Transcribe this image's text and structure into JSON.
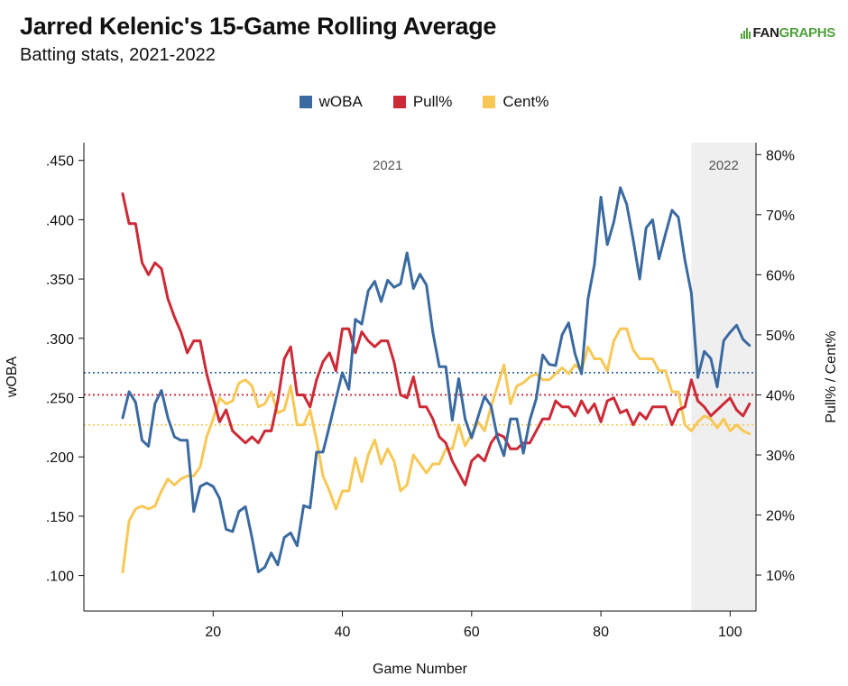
{
  "header": {
    "title": "Jarred Kelenic's 15-Game Rolling Average",
    "subtitle": "Batting stats, 2021-2022",
    "logo_fan": "FAN",
    "logo_graphs": "GRAPHS"
  },
  "colors": {
    "woba": "#3a6aa0",
    "pull": "#cc2a36",
    "cent": "#f7c856",
    "shade": "#efefef",
    "axis": "#111111"
  },
  "chart_data": {
    "type": "line",
    "title": "Jarred Kelenic's 15-Game Rolling Average",
    "subtitle": "Batting stats, 2021-2022",
    "xlabel": "Game Number",
    "ylabel_left": "wOBA",
    "ylabel_right": "Pull% / Cent%",
    "xlim": [
      0,
      104
    ],
    "ylim_left": [
      0.07,
      0.465
    ],
    "ylim_right": [
      4,
      82
    ],
    "x_ticks": [
      20,
      40,
      60,
      80,
      100
    ],
    "x_tick_labels": [
      "20",
      "40",
      "60",
      "80",
      "100"
    ],
    "y_left_ticks": [
      0.1,
      0.15,
      0.2,
      0.25,
      0.3,
      0.35,
      0.4,
      0.45
    ],
    "y_left_tick_labels": [
      ".100",
      ".150",
      ".200",
      ".250",
      ".300",
      ".350",
      ".400",
      ".450"
    ],
    "y_right_ticks": [
      10,
      20,
      30,
      40,
      50,
      60,
      70,
      80
    ],
    "y_right_tick_labels": [
      "10%",
      "20%",
      "30%",
      "40%",
      "50%",
      "60%",
      "70%",
      "80%"
    ],
    "season_labels": [
      {
        "label": "2021",
        "x": 47
      },
      {
        "label": "2022",
        "x": 99
      }
    ],
    "shaded_region": {
      "x_start": 94,
      "x_end": 104,
      "label": "2022"
    },
    "legend": [
      "wOBA",
      "Pull%",
      "Cent%"
    ],
    "legend_position": "top-center",
    "reference_lines": [
      {
        "series": "wOBA",
        "value": 0.271,
        "axis": "left"
      },
      {
        "series": "Pull%",
        "value": 40.0,
        "axis": "right"
      },
      {
        "series": "Cent%",
        "value": 35.0,
        "axis": "right"
      }
    ],
    "x": [
      6,
      7,
      8,
      9,
      10,
      11,
      12,
      13,
      14,
      15,
      16,
      17,
      18,
      19,
      20,
      21,
      22,
      23,
      24,
      25,
      26,
      27,
      28,
      29,
      30,
      31,
      32,
      33,
      34,
      35,
      36,
      37,
      38,
      39,
      40,
      41,
      42,
      43,
      44,
      45,
      46,
      47,
      48,
      49,
      50,
      51,
      52,
      53,
      54,
      55,
      56,
      57,
      58,
      59,
      60,
      61,
      62,
      63,
      64,
      65,
      66,
      67,
      68,
      69,
      70,
      71,
      72,
      73,
      74,
      75,
      76,
      77,
      78,
      79,
      80,
      81,
      82,
      83,
      84,
      85,
      86,
      87,
      88,
      89,
      90,
      91,
      92,
      93,
      94,
      95,
      96,
      97,
      98,
      99,
      100,
      101,
      102,
      103
    ],
    "series": [
      {
        "name": "wOBA",
        "axis": "left",
        "values": [
          0.233,
          0.255,
          0.246,
          0.214,
          0.209,
          0.245,
          0.256,
          0.233,
          0.217,
          0.214,
          0.214,
          0.154,
          0.175,
          0.178,
          0.175,
          0.165,
          0.139,
          0.137,
          0.154,
          0.158,
          0.132,
          0.103,
          0.107,
          0.119,
          0.109,
          0.132,
          0.136,
          0.125,
          0.159,
          0.157,
          0.204,
          0.204,
          0.226,
          0.249,
          0.271,
          0.257,
          0.316,
          0.312,
          0.34,
          0.348,
          0.331,
          0.349,
          0.343,
          0.346,
          0.372,
          0.342,
          0.354,
          0.345,
          0.305,
          0.276,
          0.276,
          0.231,
          0.266,
          0.232,
          0.216,
          0.234,
          0.251,
          0.243,
          0.216,
          0.201,
          0.232,
          0.232,
          0.203,
          0.231,
          0.249,
          0.286,
          0.278,
          0.277,
          0.303,
          0.313,
          0.287,
          0.27,
          0.333,
          0.362,
          0.419,
          0.379,
          0.398,
          0.427,
          0.413,
          0.383,
          0.35,
          0.393,
          0.4,
          0.367,
          0.388,
          0.408,
          0.402,
          0.366,
          0.338,
          0.267,
          0.289,
          0.283,
          0.259,
          0.298,
          0.305,
          0.311,
          0.299,
          0.294
        ]
      },
      {
        "name": "Pull%",
        "axis": "right",
        "values": [
          73.5,
          68.5,
          68.5,
          62,
          60,
          62,
          61,
          56,
          53,
          50.5,
          47,
          49,
          49,
          43.5,
          39.5,
          35.5,
          37.5,
          34,
          33,
          32,
          33,
          32,
          34,
          34,
          39,
          46,
          48,
          40,
          40,
          38,
          42.5,
          45.5,
          47,
          44,
          51,
          51,
          47,
          50.5,
          49,
          48,
          49,
          49,
          45.5,
          40,
          39.5,
          43,
          38,
          38,
          36,
          33,
          32,
          29,
          27,
          25,
          29,
          30,
          29,
          32,
          33.5,
          33,
          31,
          31,
          32,
          32,
          34,
          36,
          36,
          39,
          38,
          38,
          36.5,
          39,
          37,
          38.5,
          35.5,
          39,
          39.5,
          37,
          37.5,
          35,
          37,
          36,
          38,
          38,
          38,
          35,
          37.5,
          38,
          42.5,
          39,
          38,
          36.5,
          37.5,
          38.5,
          39.5,
          37.5,
          36.5,
          38.5
        ]
      },
      {
        "name": "Cent%",
        "axis": "right",
        "values": [
          10.5,
          19,
          21,
          21.5,
          21,
          21.5,
          24,
          26,
          25,
          26,
          26.5,
          26.5,
          28,
          33,
          36,
          39.5,
          38.5,
          39,
          42,
          42.5,
          41.5,
          38,
          38.5,
          40.5,
          37,
          37.5,
          41.5,
          35,
          35,
          37.5,
          32.5,
          26.5,
          24,
          21,
          24,
          24,
          29.5,
          25.5,
          30,
          32.5,
          28.5,
          31,
          29,
          24,
          25,
          30,
          28.5,
          27,
          28.5,
          28.5,
          31,
          31,
          35,
          31.5,
          33.5,
          35.5,
          34,
          38,
          41.5,
          45,
          38.5,
          41.5,
          42,
          43,
          43.5,
          42.5,
          42.5,
          43.5,
          44.5,
          43.5,
          45,
          44,
          48,
          46,
          46,
          44,
          49,
          51,
          51,
          47.5,
          46,
          46,
          46,
          44,
          44,
          40.5,
          40.5,
          35,
          34,
          35.5,
          36.5,
          36,
          34.5,
          36,
          34,
          35,
          34,
          33.5
        ]
      }
    ]
  }
}
